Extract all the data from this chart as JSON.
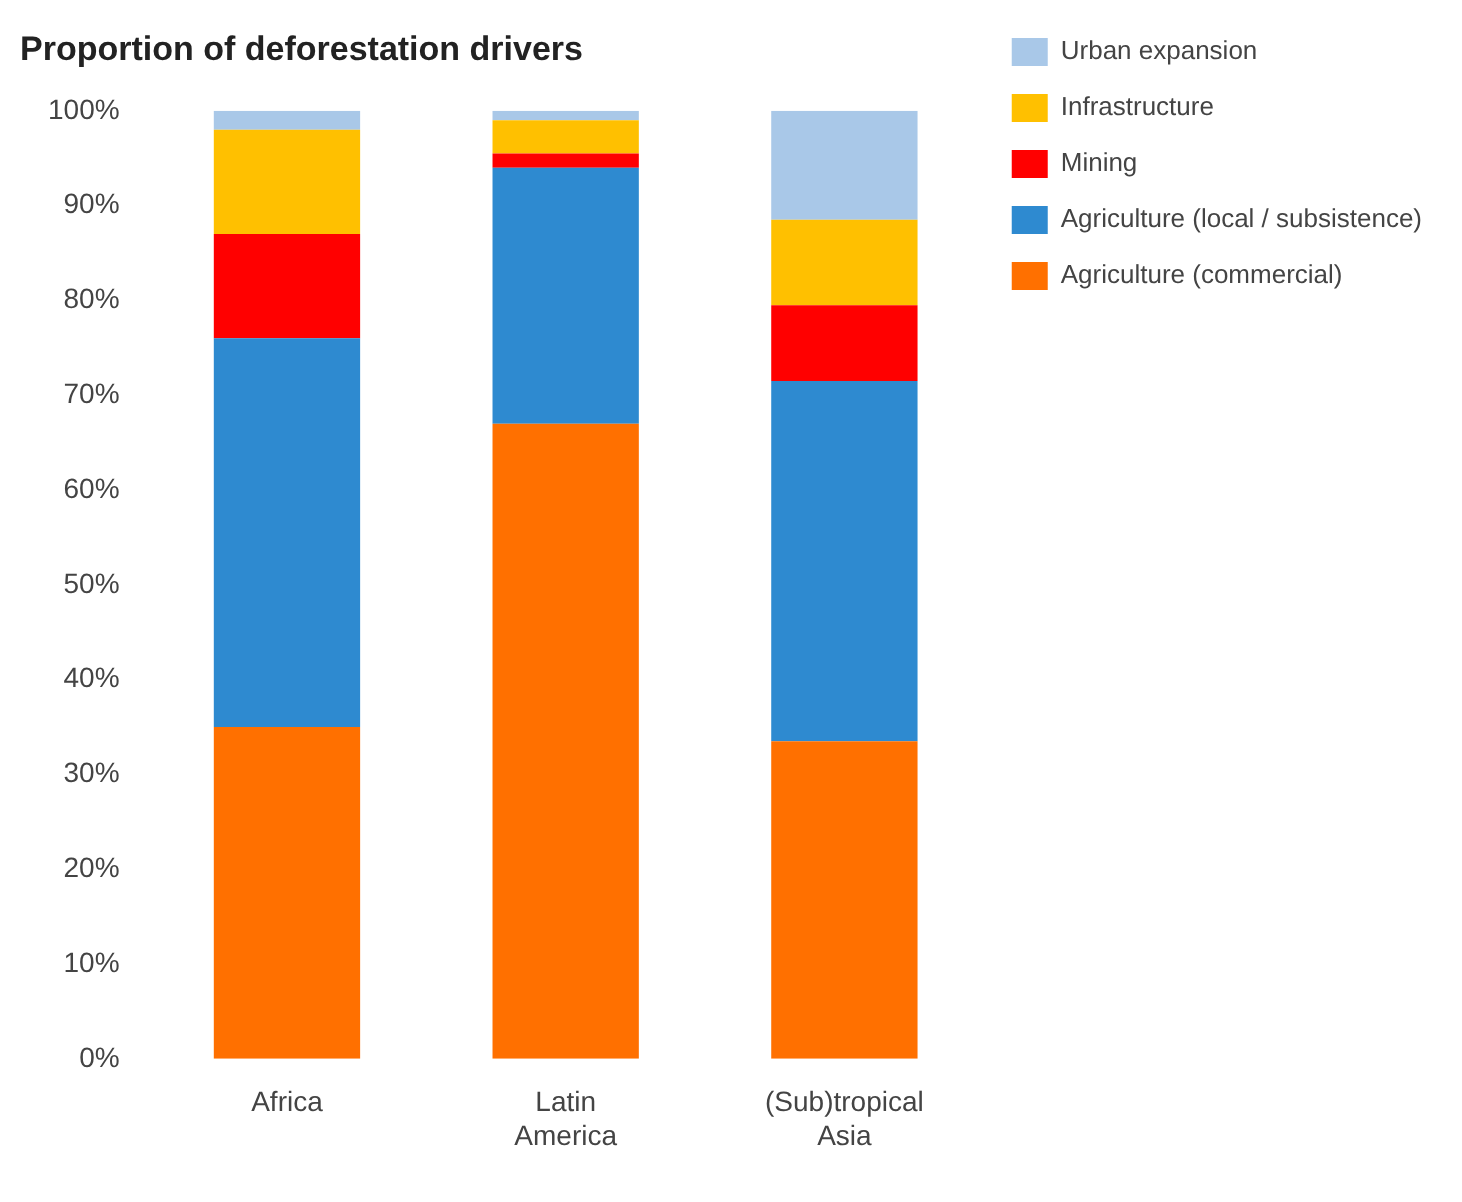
{
  "chart_data": {
    "type": "bar",
    "title": "Proportion of deforestation drivers",
    "categories": [
      "Africa",
      "Latin America",
      "(Sub)tropical Asia"
    ],
    "stacked": true,
    "ylim": [
      0,
      100
    ],
    "yticks": [
      {
        "value": 0,
        "label": "0%"
      },
      {
        "value": 10,
        "label": "10%"
      },
      {
        "value": 20,
        "label": "20%"
      },
      {
        "value": 30,
        "label": "30%"
      },
      {
        "value": 40,
        "label": "40%"
      },
      {
        "value": 50,
        "label": "50%"
      },
      {
        "value": 60,
        "label": "60%"
      },
      {
        "value": 70,
        "label": "70%"
      },
      {
        "value": 80,
        "label": "80%"
      },
      {
        "value": 90,
        "label": "90%"
      },
      {
        "value": 100,
        "label": "100%"
      }
    ],
    "grid": false,
    "legend": "top right",
    "series": [
      {
        "name": "Agriculture (commercial)",
        "color": "#ff7000",
        "values": [
          35,
          67,
          33.5
        ]
      },
      {
        "name": "Agriculture (local / subsistence)",
        "color": "#2e8ad0",
        "values": [
          41,
          27,
          38
        ]
      },
      {
        "name": "Mining",
        "color": "#ff0000",
        "values": [
          11,
          1.5,
          8
        ]
      },
      {
        "name": "Infrastructure",
        "color": "#ffc000",
        "values": [
          11,
          3.5,
          9
        ]
      },
      {
        "name": "Urban expansion",
        "color": "#a9c8e8",
        "values": [
          2,
          1,
          11.5
        ]
      }
    ]
  }
}
